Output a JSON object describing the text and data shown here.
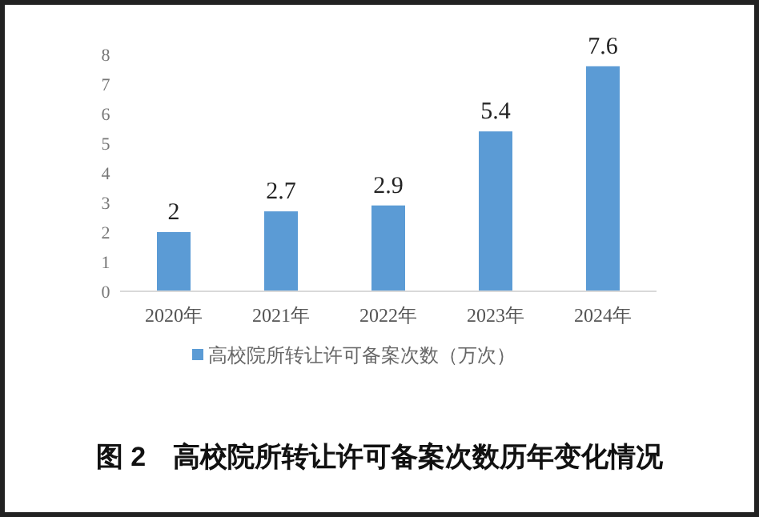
{
  "chart_data": {
    "type": "bar",
    "title": "图 2　高校院所转让许可备案次数历年变化情况",
    "categories": [
      "2020年",
      "2021年",
      "2022年",
      "2023年",
      "2024年"
    ],
    "series": [
      {
        "name": "高校院所转让许可备案次数（万次）",
        "color": "#5b9bd5",
        "values": [
          2,
          2.7,
          2.9,
          5.4,
          7.6
        ]
      }
    ],
    "ylim": [
      0,
      8
    ],
    "yticks": [
      0,
      1,
      2,
      3,
      4,
      5,
      6,
      7,
      8
    ],
    "data_labels": true,
    "grid": false,
    "legend": "bottom"
  }
}
